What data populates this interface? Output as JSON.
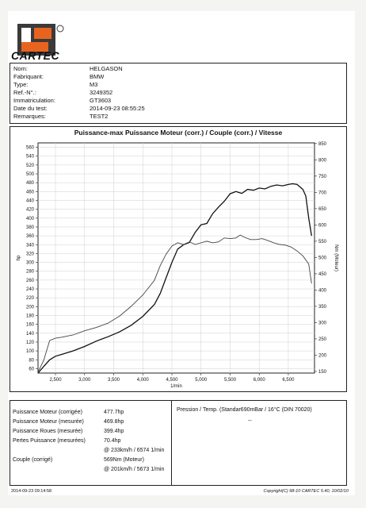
{
  "brand": {
    "logo_text": "CARTEC"
  },
  "info": [
    {
      "label": "Nom:",
      "value": "HELGASON"
    },
    {
      "label": "Fabriquant:",
      "value": "BMW"
    },
    {
      "label": "Type:",
      "value": "M3"
    },
    {
      "label": "Ref.-N°.:",
      "value": "3249352"
    },
    {
      "label": "Immatriculation:",
      "value": "GT3603"
    },
    {
      "label": "Date du test:",
      "value": "2014-09-23 08:55:25"
    },
    {
      "label": "Remarques:",
      "value": "TEST2"
    }
  ],
  "chart_data": {
    "type": "line",
    "title": "Puissance-max Puissance Moteur (corr.) / Couple (corr.) / Vitesse",
    "xlabel": "1/min",
    "ylabel": "hp",
    "ylabel_right": "Nm (Moteur)",
    "xlim": [
      2200,
      6950
    ],
    "ylim": [
      50,
      570
    ],
    "ylim_right": [
      145,
      852
    ],
    "x_ticks": [
      "2,500",
      "3,000",
      "3,500",
      "4,000",
      "4,500",
      "5,000",
      "5,500",
      "6,000",
      "6,500"
    ],
    "x_tick_values": [
      2500,
      3000,
      3500,
      4000,
      4500,
      5000,
      5500,
      6000,
      6500
    ],
    "y_ticks": [
      60,
      80,
      100,
      120,
      140,
      160,
      180,
      200,
      220,
      240,
      260,
      280,
      300,
      320,
      340,
      360,
      380,
      400,
      420,
      440,
      460,
      480,
      500,
      520,
      540,
      560
    ],
    "y_right_ticks": [
      150,
      200,
      250,
      300,
      350,
      400,
      450,
      500,
      550,
      600,
      650,
      700,
      750,
      800,
      850
    ],
    "grid": true,
    "series": [
      {
        "axis": "left",
        "color": "#111111",
        "x": [
          2200,
          2300,
          2400,
          2500,
          2600,
          2800,
          3000,
          3200,
          3400,
          3600,
          3800,
          4000,
          4200,
          4300,
          4400,
          4500,
          4600,
          4700,
          4800,
          4900,
          5000,
          5100,
          5200,
          5300,
          5400,
          5500,
          5600,
          5700,
          5800,
          5900,
          6000,
          6100,
          6200,
          6300,
          6400,
          6500,
          6574,
          6650,
          6750,
          6800,
          6850,
          6900
        ],
        "values": [
          50,
          65,
          80,
          88,
          92,
          100,
          110,
          122,
          132,
          143,
          158,
          178,
          205,
          230,
          265,
          300,
          330,
          340,
          345,
          368,
          385,
          388,
          410,
          425,
          438,
          455,
          460,
          456,
          465,
          463,
          468,
          466,
          472,
          475,
          473,
          476,
          477.7,
          476,
          465,
          450,
          400,
          360
        ]
      },
      {
        "axis": "right",
        "color": "#444444",
        "x": [
          2200,
          2300,
          2400,
          2500,
          2600,
          2800,
          3000,
          3200,
          3400,
          3600,
          3800,
          4000,
          4200,
          4300,
          4400,
          4500,
          4600,
          4700,
          4800,
          4900,
          5000,
          5100,
          5200,
          5300,
          5400,
          5500,
          5600,
          5673,
          5750,
          5850,
          5950,
          6050,
          6150,
          6250,
          6350,
          6450,
          6550,
          6650,
          6750,
          6850,
          6900
        ],
        "values": [
          148,
          185,
          245,
          252,
          255,
          262,
          275,
          285,
          298,
          320,
          350,
          385,
          430,
          475,
          510,
          535,
          545,
          540,
          548,
          540,
          545,
          550,
          545,
          548,
          560,
          558,
          560,
          569,
          562,
          555,
          555,
          558,
          552,
          545,
          540,
          538,
          532,
          520,
          505,
          480,
          420
        ]
      }
    ]
  },
  "results": [
    {
      "label": "Puissance Moteur (corrigée)",
      "value": "477.7hp"
    },
    {
      "label": "Puissance Moteur (mesurée)",
      "value": "469.8hp"
    },
    {
      "label": "Puissance Roues (mesurée)",
      "value": "399.4hp"
    },
    {
      "label": "Pertes Puissance (mesurées)",
      "value": "70.4hp"
    },
    {
      "label": "",
      "value": "@ 233km/h / 6574 1/min"
    },
    {
      "label": "Couple (corrigé)",
      "value": "569Nm (Moteur)"
    },
    {
      "label": "",
      "value": "@ 201km/h / 5673 1/min"
    }
  ],
  "conditions": {
    "text": "Pression / Temp. (Standar690mBar / 16°C   (DIN 70020)",
    "dash": "--"
  },
  "footer": {
    "left": "2014-09-23 09:14:58",
    "right": "Copyright(C) 98-10 CARTEC 5.40, 10/02/10"
  },
  "colors": {
    "logo_orange": "#e8641e",
    "logo_dark": "#3a3a3a"
  }
}
